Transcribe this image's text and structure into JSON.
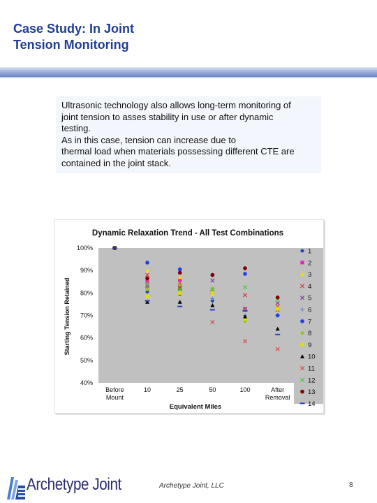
{
  "slide": {
    "title": "Case Study: In Joint\nTension Monitoring",
    "body_lines": [
      "Ultrasonic technology also allows long-term monitoring of",
      "joint tension to asses stability in use or after dynamic",
      "testing.",
      "As in this case, tension can increase due to",
      "thermal load when materials possessing different CTE are",
      "contained in the joint stack."
    ]
  },
  "footer": {
    "logo_text": "Archetype Joint",
    "company": "Archetype Joint, LLC",
    "page_number": "8"
  },
  "chart_data": {
    "type": "scatter",
    "title": "Dynamic Relaxation Trend - All Test Combinations",
    "xlabel": "Equivalent Miles",
    "ylabel": "Starting Tension Retained",
    "categories": [
      "Before\nMount",
      "10",
      "25",
      "50",
      "100",
      "After\nRemoval"
    ],
    "yticks": [
      "100%",
      "90%",
      "80%",
      "70%",
      "60%",
      "50%",
      "40%"
    ],
    "ylim": [
      40,
      100
    ],
    "legend_position": "right",
    "series": [
      {
        "name": "1",
        "marker": "diamond",
        "color": "#1f3fa0",
        "values": [
          100,
          80.5,
          79.5,
          76.5,
          72.5,
          70
        ]
      },
      {
        "name": "2",
        "marker": "square",
        "color": "#e020c0",
        "values": [
          100,
          85,
          86,
          80,
          73,
          72.5
        ]
      },
      {
        "name": "3",
        "marker": "triangle",
        "color": "#f0e400",
        "values": [
          100,
          90,
          87,
          79.5,
          73,
          73.5
        ]
      },
      {
        "name": "4",
        "marker": "x",
        "color": "#e03030",
        "values": [
          100,
          88,
          84.5,
          80.5,
          79,
          74
        ]
      },
      {
        "name": "5",
        "marker": "x",
        "color": "#8030a0",
        "values": [
          100,
          83,
          82,
          85.5,
          73,
          75.5
        ]
      },
      {
        "name": "6",
        "marker": "plus",
        "color": "#6080c0",
        "values": [
          100,
          83,
          82,
          77.5,
          70,
          70
        ]
      },
      {
        "name": "7",
        "marker": "circle",
        "color": "#2040e0",
        "values": [
          100,
          93.5,
          90.5,
          88,
          88.5,
          70
        ]
      },
      {
        "name": "8",
        "marker": "diamond",
        "color": "#90c020",
        "values": [
          100,
          81.5,
          83.5,
          82,
          67.5,
          72.5
        ]
      },
      {
        "name": "9",
        "marker": "square",
        "color": "#e0e000",
        "values": [
          100,
          78.5,
          80,
          80,
          68.5,
          73
        ]
      },
      {
        "name": "10",
        "marker": "triangle",
        "color": "#000000",
        "values": [
          100,
          76,
          76,
          74.5,
          69.5,
          64
        ]
      },
      {
        "name": "11",
        "marker": "x",
        "color": "#e04040",
        "values": [
          100,
          83,
          82.5,
          67,
          58.5,
          55
        ]
      },
      {
        "name": "12",
        "marker": "x",
        "color": "#30d030",
        "values": [
          100,
          84.5,
          81.5,
          81.5,
          82.5,
          77
        ]
      },
      {
        "name": "13",
        "marker": "circle",
        "color": "#800000",
        "values": [
          100,
          86.5,
          89,
          88,
          91,
          78
        ]
      },
      {
        "name": "14",
        "marker": "dash",
        "color": "#2040c0",
        "values": [
          100,
          76.5,
          74,
          72.5,
          72,
          61.5
        ]
      }
    ],
    "grid": false
  }
}
